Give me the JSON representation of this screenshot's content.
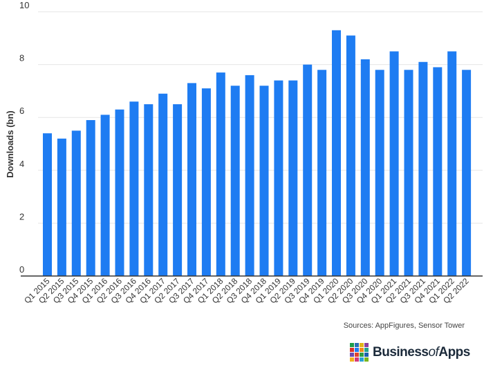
{
  "chart_data": {
    "type": "bar",
    "title": "",
    "xlabel": "",
    "ylabel": "Downloads (bn)",
    "ylim": [
      0,
      10
    ],
    "yticks": [
      0,
      2,
      4,
      6,
      8,
      10
    ],
    "grid": true,
    "bar_color": "#1e7cf2",
    "categories": [
      "Q1 2015",
      "Q2 2015",
      "Q3 2015",
      "Q4 2015",
      "Q1 2016",
      "Q2 2016",
      "Q3 2016",
      "Q4 2016",
      "Q1 2017",
      "Q2 2017",
      "Q3 2017",
      "Q4 2017",
      "Q1 2018",
      "Q2 2018",
      "Q3 2018",
      "Q4 2018",
      "Q1 2019",
      "Q2 2019",
      "Q3 2019",
      "Q4 2019",
      "Q1 2020",
      "Q2 2020",
      "Q3 2020",
      "Q4 2020",
      "Q1 2021",
      "Q2 2021",
      "Q3 2021",
      "Q4 2021",
      "Q1 2022",
      "Q2 2022"
    ],
    "values": [
      5.4,
      5.2,
      5.5,
      5.9,
      6.1,
      6.3,
      6.6,
      6.5,
      6.9,
      6.5,
      7.3,
      7.1,
      7.7,
      7.2,
      7.6,
      7.2,
      7.4,
      7.4,
      8.0,
      7.8,
      9.3,
      9.1,
      8.2,
      7.8,
      8.5,
      7.8,
      8.1,
      7.9,
      8.5,
      7.8
    ]
  },
  "source": "Sources: AppFigures, Sensor Tower",
  "logo": {
    "text_main": "Business",
    "text_of": "of",
    "text_end": "Apps",
    "colors": [
      "#1e9e4a",
      "#2a6fb5",
      "#e2b51a",
      "#8b3fa0",
      "#d8342c",
      "#1e7cf2",
      "#f08a1c",
      "#24a38f",
      "#6c4bb0",
      "#e0452b",
      "#2f9e44",
      "#1e5fb0",
      "#f2b21b",
      "#d33a7a",
      "#29a3d6",
      "#7ab51e"
    ]
  }
}
